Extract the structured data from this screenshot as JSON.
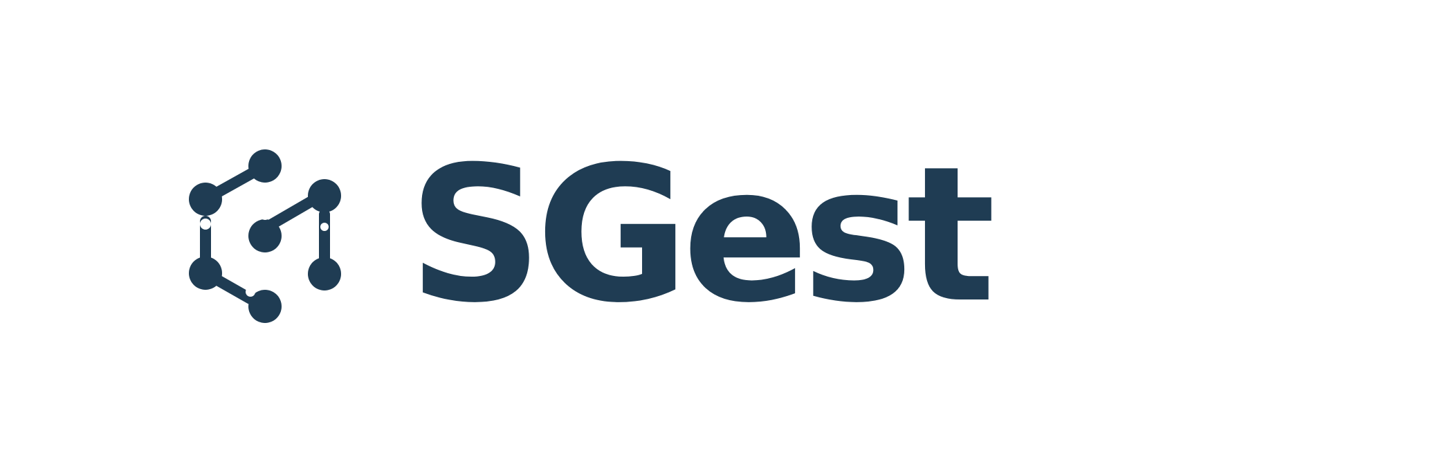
{
  "brand": {
    "name": "SGest",
    "color": "#1f3c53",
    "background": "#ffffff",
    "mark_icon": "node-network-hexagon-icon"
  }
}
